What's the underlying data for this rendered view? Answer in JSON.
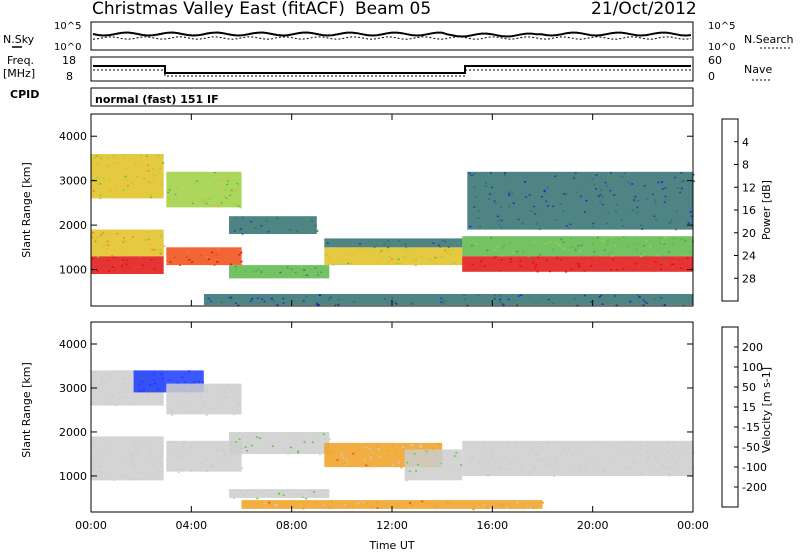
{
  "header": {
    "station": "Christmas Valley East (fitACF)",
    "beam": "Beam 05",
    "date": "21/Oct/2012"
  },
  "noise_panel": {
    "left_label": "N.Sky",
    "right_label": "N.Search",
    "left_ticks": [
      "10^5",
      "10^0"
    ],
    "right_ticks": [
      "10^5",
      "10^0"
    ]
  },
  "freq_panel": {
    "left_label_line1": "Freq.",
    "left_label_line2": "[MHz]",
    "right_label": "Nave",
    "left_ticks": [
      "18",
      "8"
    ],
    "right_ticks": [
      "60",
      "0"
    ]
  },
  "cpid": {
    "label": "CPID",
    "mode_text": "normal (fast) 151 IF"
  },
  "chart_data": [
    {
      "type": "heatmap",
      "title": "Power",
      "xlabel": "",
      "ylabel": "Slant Range [km]",
      "x_ticks": [
        "00:00",
        "04:00",
        "08:00",
        "12:00",
        "16:00",
        "20:00",
        "00:00"
      ],
      "xlim_hours": [
        0,
        24
      ],
      "y_ticks": [
        1000,
        2000,
        3000,
        4000
      ],
      "ylim": [
        180,
        4500
      ],
      "colorbar": {
        "label": "Power [dB]",
        "ticks": [
          "4",
          "8",
          "12",
          "16",
          "20",
          "24",
          "28"
        ],
        "range": [
          0,
          30
        ],
        "colors": [
          "#1a1aff",
          "#2a3aa8",
          "#2f6f6f",
          "#4a9a5a",
          "#5ab84a",
          "#9fd040",
          "#e0c020",
          "#f08a20",
          "#f04a10",
          "#e01010"
        ]
      },
      "bands": [
        {
          "t0": 0.0,
          "t1": 2.9,
          "r0": 900,
          "r1": 1300,
          "level": 28
        },
        {
          "t0": 0.0,
          "t1": 2.9,
          "r0": 1300,
          "r1": 1900,
          "level": 20
        },
        {
          "t0": 0.0,
          "t1": 2.9,
          "r0": 2600,
          "r1": 3600,
          "level": 18
        },
        {
          "t0": 3.0,
          "t1": 6.0,
          "r0": 1100,
          "r1": 1500,
          "level": 26
        },
        {
          "t0": 3.0,
          "t1": 6.0,
          "r0": 2400,
          "r1": 3200,
          "level": 16
        },
        {
          "t0": 5.5,
          "t1": 9.0,
          "r0": 1800,
          "r1": 2200,
          "level": 8
        },
        {
          "t0": 5.5,
          "t1": 9.5,
          "r0": 800,
          "r1": 1100,
          "level": 12
        },
        {
          "t0": 9.3,
          "t1": 14.8,
          "r0": 1100,
          "r1": 1500,
          "level": 18
        },
        {
          "t0": 9.3,
          "t1": 14.8,
          "r0": 1500,
          "r1": 1700,
          "level": 8
        },
        {
          "t0": 14.8,
          "t1": 24.0,
          "r0": 950,
          "r1": 1300,
          "level": 28
        },
        {
          "t0": 14.8,
          "t1": 24.0,
          "r0": 1300,
          "r1": 1750,
          "level": 14
        },
        {
          "t0": 15.0,
          "t1": 24.0,
          "r0": 1900,
          "r1": 3200,
          "level": 6
        },
        {
          "t0": 4.5,
          "t1": 24.0,
          "r0": 200,
          "r1": 450,
          "level": 6
        }
      ]
    },
    {
      "type": "heatmap",
      "title": "Velocity",
      "xlabel": "Time UT",
      "ylabel": "Slant Range [km]",
      "x_ticks": [
        "00:00",
        "04:00",
        "08:00",
        "12:00",
        "16:00",
        "20:00",
        "00:00"
      ],
      "xlim_hours": [
        0,
        24
      ],
      "y_ticks": [
        1000,
        2000,
        3000,
        4000
      ],
      "ylim": [
        180,
        4500
      ],
      "colorbar": {
        "label": "Velocity [m s-1]",
        "ticks": [
          "200",
          "100",
          "50",
          "15",
          "-15",
          "-50",
          "-100",
          "-200"
        ],
        "range": [
          -250,
          250
        ],
        "colors": [
          "#e01010",
          "#f04a10",
          "#f0a020",
          "#cccccc",
          "#cccccc",
          "#5acc3a",
          "#2f7f4f",
          "#1a3aff"
        ]
      },
      "bands": [
        {
          "t0": 0.0,
          "t1": 2.9,
          "r0": 900,
          "r1": 1900,
          "level": 0
        },
        {
          "t0": 0.0,
          "t1": 2.9,
          "r0": 2600,
          "r1": 3400,
          "level": 0
        },
        {
          "t0": 1.7,
          "t1": 4.5,
          "r0": 2900,
          "r1": 3400,
          "level": 220
        },
        {
          "t0": 3.0,
          "t1": 6.0,
          "r0": 1100,
          "r1": 1800,
          "level": 0
        },
        {
          "t0": 3.0,
          "t1": 6.0,
          "r0": 2400,
          "r1": 3100,
          "level": 0
        },
        {
          "t0": 5.5,
          "t1": 9.5,
          "r0": 1500,
          "r1": 2000,
          "level": 40
        },
        {
          "t0": 5.5,
          "t1": 9.5,
          "r0": 500,
          "r1": 700,
          "level": 40
        },
        {
          "t0": 9.3,
          "t1": 14.0,
          "r0": 1200,
          "r1": 1750,
          "level": -70
        },
        {
          "t0": 12.5,
          "t1": 14.8,
          "r0": 900,
          "r1": 1600,
          "level": 40
        },
        {
          "t0": 14.8,
          "t1": 24.0,
          "r0": 1000,
          "r1": 1800,
          "level": 0
        },
        {
          "t0": 6.0,
          "t1": 18.0,
          "r0": 250,
          "r1": 450,
          "level": -80
        }
      ]
    }
  ]
}
